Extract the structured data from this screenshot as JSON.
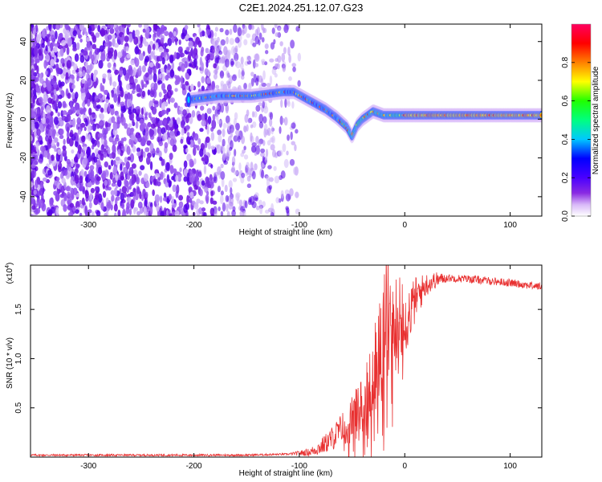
{
  "title": "C2E1.2024.251.12.07.G23",
  "colors": {
    "snr_line": "#e83030",
    "colorbar": [
      "#ffffff",
      "#d8b8f8",
      "#8a2be2",
      "#4a00ff",
      "#0000ff",
      "#00c8ff",
      "#00ff80",
      "#20ff00",
      "#ffff00",
      "#ff8000",
      "#ff0000",
      "#ff0060"
    ]
  },
  "chart_data": [
    {
      "id": "spectrogram",
      "type": "heatmap",
      "xlabel": "Height of straight line (km)",
      "ylabel": "Frequency (Hz)",
      "xlim": [
        -355,
        130
      ],
      "ylim": [
        -50,
        49
      ],
      "xticks": [
        -300,
        -200,
        -100,
        0,
        100
      ],
      "yticks": [
        -40,
        -20,
        0,
        20,
        40
      ],
      "colorbar": {
        "label": "Normalized spectral amplitude",
        "range": [
          0,
          1
        ],
        "ticks": [
          "0.0",
          "0.2",
          "0.4",
          "0.6",
          "0.8"
        ],
        "tick_values": [
          0,
          0.2,
          0.4,
          0.6,
          0.8
        ]
      },
      "ridge": {
        "x": [
          -205,
          -190,
          -175,
          -160,
          -145,
          -130,
          -115,
          -105,
          -95,
          -85,
          -75,
          -65,
          -55,
          -50,
          -45,
          -40,
          -35,
          -30,
          -25,
          -20,
          -10,
          0,
          20,
          50,
          80,
          110,
          130
        ],
        "freq": [
          10,
          11,
          12,
          12,
          12,
          13,
          14,
          14,
          11,
          8,
          5,
          1,
          -4,
          -9,
          -3,
          0,
          2,
          4,
          3,
          2,
          2,
          2,
          2,
          2,
          2,
          2,
          2
        ]
      },
      "noise_region_km": [
        -355,
        -100
      ]
    },
    {
      "id": "snr",
      "type": "line",
      "xlabel": "Height of straight line (km)",
      "ylabel": "SNR (10 * v/v)",
      "exponent_label": "(x10",
      "exponent_power": "4",
      "exponent_close": ")",
      "xlim": [
        -355,
        130
      ],
      "ylim": [
        0,
        1.95
      ],
      "xticks": [
        -300,
        -200,
        -100,
        0,
        100
      ],
      "yticks": [
        0.5,
        1.0,
        1.5
      ],
      "ytick_labels": [
        "0.5",
        "1.0",
        "1.5"
      ],
      "envelope": {
        "x": [
          -355,
          -150,
          -110,
          -90,
          -80,
          -70,
          -60,
          -50,
          -40,
          -30,
          -25,
          -20,
          -15,
          -10,
          -5,
          0,
          10,
          20,
          30,
          40,
          60,
          80,
          100,
          130
        ],
        "y": [
          0.02,
          0.02,
          0.03,
          0.05,
          0.1,
          0.18,
          0.28,
          0.4,
          0.55,
          0.8,
          1.05,
          1.3,
          1.7,
          1.3,
          1.45,
          1.35,
          1.6,
          1.75,
          1.8,
          1.82,
          1.81,
          1.79,
          1.77,
          1.73
        ]
      },
      "noise_amp": {
        "x": [
          -355,
          -110,
          -90,
          -70,
          -50,
          -40,
          -30,
          -20,
          -10,
          0,
          20,
          40,
          130
        ],
        "y": [
          0.01,
          0.01,
          0.04,
          0.12,
          0.22,
          0.3,
          0.45,
          0.6,
          0.5,
          0.35,
          0.12,
          0.04,
          0.04
        ]
      }
    }
  ]
}
